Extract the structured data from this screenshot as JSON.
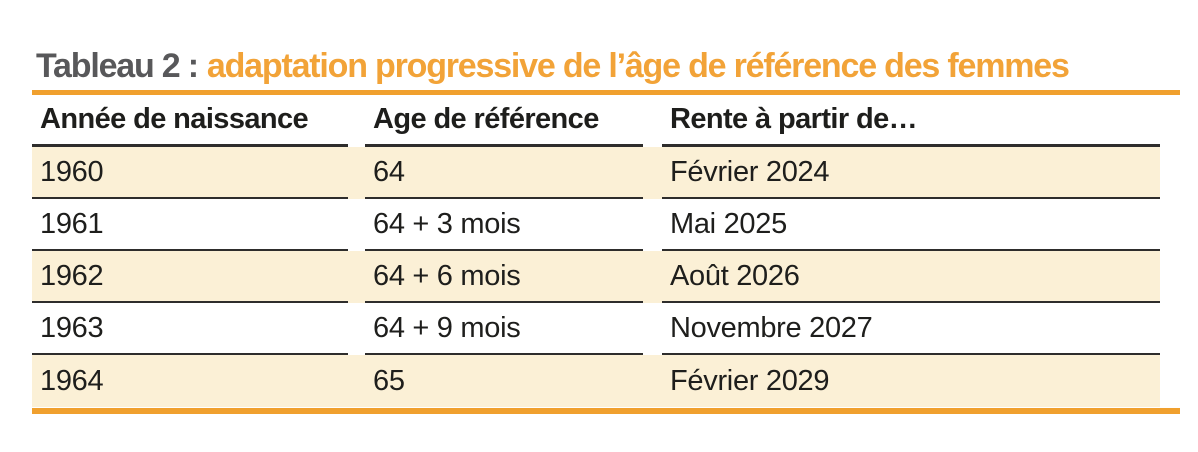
{
  "title": {
    "label": "Tableau 2 :",
    "highlight": "adaptation progressive de l’âge de référence des femmes"
  },
  "table": {
    "headers": [
      "Année de naissance",
      "Age de référence",
      "Rente à partir de…"
    ],
    "rows": [
      {
        "annee_naissance": "1960",
        "age_reference": "64",
        "rente_a_partir_de": "Février 2024"
      },
      {
        "annee_naissance": "1961",
        "age_reference": "64 + 3 mois",
        "rente_a_partir_de": "Mai 2025"
      },
      {
        "annee_naissance": "1962",
        "age_reference": "64 + 6 mois",
        "rente_a_partir_de": "Août 2026"
      },
      {
        "annee_naissance": "1963",
        "age_reference": "64 + 9 mois",
        "rente_a_partir_de": "Novembre 2027"
      },
      {
        "annee_naissance": "1964",
        "age_reference": "65",
        "rente_a_partir_de": "Février 2029"
      }
    ]
  },
  "colors": {
    "page_bg": "#ffffff",
    "accent_orange": "#f2a338",
    "rule_orange": "#f0a02e",
    "title_gray": "#58585a",
    "row_cream": "#fbf0d6",
    "line_dark": "#2e2d2c",
    "text_dark": "#1e1e1c"
  }
}
